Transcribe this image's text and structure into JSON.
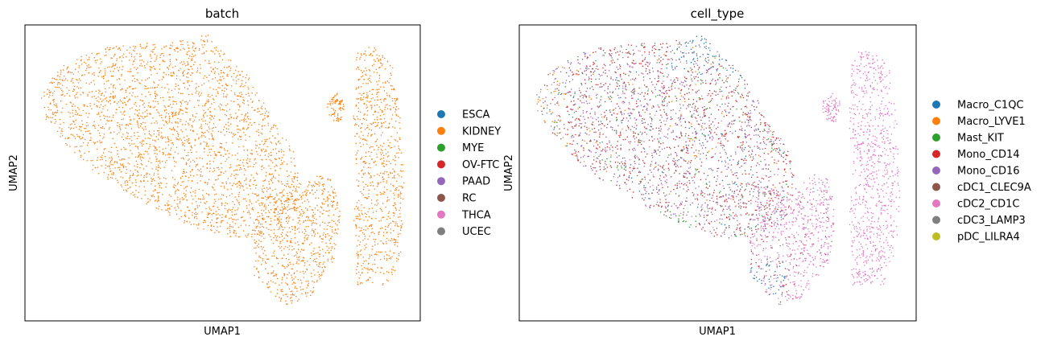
{
  "chart_data": [
    {
      "type": "scatter",
      "title": "batch",
      "xlabel": "UMAP1",
      "ylabel": "UMAP2",
      "grid": false,
      "legend_position": "right",
      "series": [
        {
          "name": "ESCA",
          "color": "#1f77b4"
        },
        {
          "name": "KIDNEY",
          "color": "#ff7f0e"
        },
        {
          "name": "MYE",
          "color": "#2ca02c"
        },
        {
          "name": "OV-FTC",
          "color": "#d62728"
        },
        {
          "name": "PAAD",
          "color": "#9467bd"
        },
        {
          "name": "RC",
          "color": "#8c564b"
        },
        {
          "name": "THCA",
          "color": "#e377c2"
        },
        {
          "name": "UCEC",
          "color": "#7f7f7f"
        }
      ]
    },
    {
      "type": "scatter",
      "title": "cell_type",
      "xlabel": "UMAP1",
      "ylabel": "UMAP2",
      "grid": false,
      "legend_position": "right",
      "series": [
        {
          "name": "Macro_C1QC",
          "color": "#1f77b4"
        },
        {
          "name": "Macro_LYVE1",
          "color": "#ff7f0e"
        },
        {
          "name": "Mast_KIT",
          "color": "#2ca02c"
        },
        {
          "name": "Mono_CD14",
          "color": "#d62728"
        },
        {
          "name": "Mono_CD16",
          "color": "#9467bd"
        },
        {
          "name": "cDC1_CLEC9A",
          "color": "#8c564b"
        },
        {
          "name": "cDC2_CD1C",
          "color": "#e377c2"
        },
        {
          "name": "cDC3_LAMP3",
          "color": "#7f7f7f"
        },
        {
          "name": "pDC_LILRA4",
          "color": "#bcbd22"
        }
      ]
    }
  ]
}
